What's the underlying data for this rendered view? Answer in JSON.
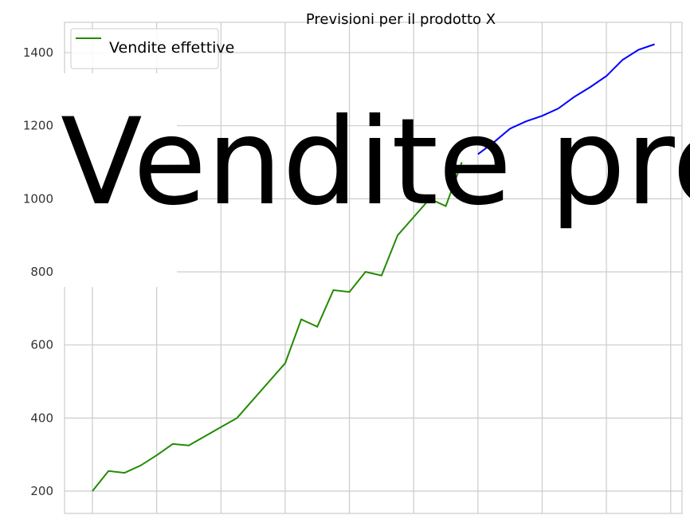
{
  "chart_data": {
    "type": "line",
    "title": "Previsioni per il prodotto X",
    "xlabel": "",
    "ylabel": "",
    "ylim": [
      139,
      1483
    ],
    "yticks": [
      200,
      400,
      600,
      800,
      1000,
      1200,
      1400
    ],
    "grid": true,
    "legend_placement": "top-left",
    "series": [
      {
        "name": "Vendite effettive",
        "color": "#228b00",
        "x": [
          0,
          1,
          2,
          3,
          4,
          5,
          6,
          7,
          8,
          9,
          10,
          11,
          12,
          13,
          14,
          15,
          16,
          17,
          18,
          19,
          20,
          21,
          22,
          23
        ],
        "values": [
          200,
          255,
          250,
          270,
          298,
          329,
          325,
          350,
          375,
          400,
          450,
          500,
          550,
          670,
          650,
          750,
          745,
          800,
          790,
          900,
          950,
          1000,
          980,
          1100
        ]
      },
      {
        "name": "Vendite previste",
        "color": "#0000ff",
        "x": [
          24,
          25,
          26,
          27,
          28,
          29,
          30,
          31,
          32,
          33,
          34,
          35
        ],
        "values": [
          1122,
          1155,
          1192,
          1212,
          1227,
          1247,
          1279,
          1306,
          1336,
          1380,
          1408,
          1423
        ]
      }
    ]
  }
}
